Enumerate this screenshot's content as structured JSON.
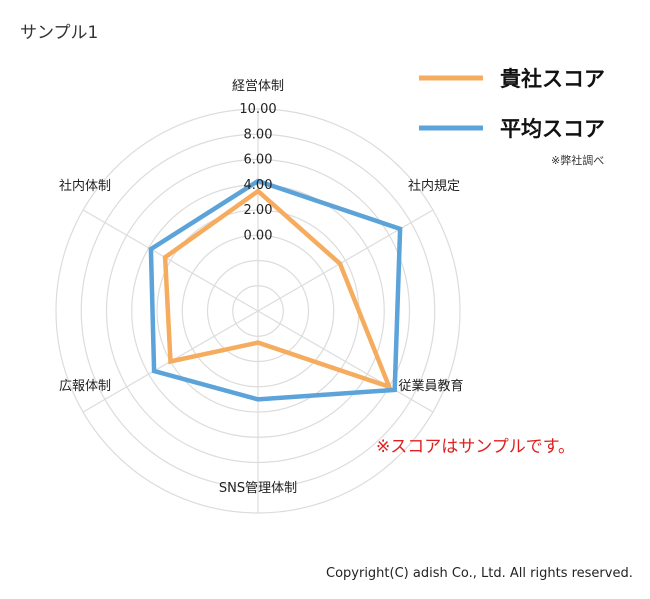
{
  "page": {
    "title": "サンプル1"
  },
  "chart_data": {
    "type": "radar",
    "axes": [
      "経営体制",
      "社内規定",
      "従業員教育",
      "SNS管理体制",
      "広報体制",
      "社内体制"
    ],
    "ticks": [
      "0.00",
      "2.00",
      "4.00",
      "6.00",
      "8.00",
      "10.00"
    ],
    "range": [
      -6,
      10
    ],
    "grid": true,
    "legend_position": "top-right",
    "series": [
      {
        "name": "貴社スコア",
        "values": [
          3.5,
          1.5,
          6.0,
          -3.5,
          2.0,
          2.5
        ],
        "color": "#f6ac5e"
      },
      {
        "name": "平均スコア",
        "values": [
          4.3,
          7.0,
          6.5,
          1.0,
          3.5,
          3.8
        ],
        "color": "#5ba3d9"
      }
    ]
  },
  "notes": {
    "source": "※弊社調べ",
    "sample": "※スコアはサンプルです。",
    "copyright": "Copyright(C) adish Co., Ltd. All rights reserved."
  }
}
